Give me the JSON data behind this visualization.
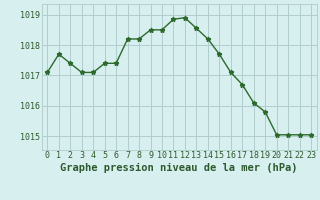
{
  "x": [
    0,
    1,
    2,
    3,
    4,
    5,
    6,
    7,
    8,
    9,
    10,
    11,
    12,
    13,
    14,
    15,
    16,
    17,
    18,
    19,
    20,
    21,
    22,
    23
  ],
  "y": [
    1017.1,
    1017.7,
    1017.4,
    1017.1,
    1017.1,
    1017.4,
    1017.4,
    1018.2,
    1018.2,
    1018.5,
    1018.5,
    1018.85,
    1018.9,
    1018.55,
    1018.2,
    1017.7,
    1017.1,
    1016.7,
    1016.1,
    1015.8,
    1015.05,
    1015.05,
    1015.05,
    1015.05
  ],
  "line_color": "#2d6a2d",
  "marker": "*",
  "marker_size": 3.5,
  "background_color": "#d7efef",
  "grid_color": "#b0cccc",
  "xlabel": "Graphe pression niveau de la mer (hPa)",
  "xlabel_fontsize": 7.5,
  "yticks": [
    1015,
    1016,
    1017,
    1018,
    1019
  ],
  "ytick_labels": [
    "1015",
    "1016",
    "1017",
    "1018",
    "1019"
  ],
  "xticks": [
    0,
    1,
    2,
    3,
    4,
    5,
    6,
    7,
    8,
    9,
    10,
    11,
    12,
    13,
    14,
    15,
    16,
    17,
    18,
    19,
    20,
    21,
    22,
    23
  ],
  "xtick_labels": [
    "0",
    "1",
    "2",
    "3",
    "4",
    "5",
    "6",
    "7",
    "8",
    "9",
    "10",
    "11",
    "12",
    "13",
    "14",
    "15",
    "16",
    "17",
    "18",
    "19",
    "20",
    "21",
    "22",
    "23"
  ],
  "ylim": [
    1014.55,
    1019.35
  ],
  "xlim": [
    -0.5,
    23.5
  ],
  "tick_color": "#2d5a2d",
  "tick_fontsize": 6,
  "line_width": 1.0
}
